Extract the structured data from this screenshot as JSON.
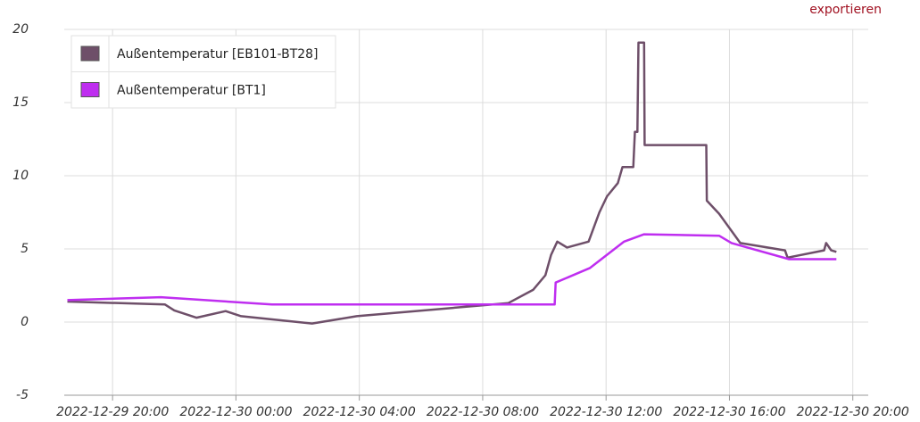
{
  "export_link": "exportieren",
  "chart_data": {
    "type": "line",
    "legend": "upper left",
    "grid": true,
    "ylim": [
      -5,
      20
    ],
    "yticks": [
      -5,
      0,
      5,
      10,
      15,
      20
    ],
    "xlim": [
      "2022-12-29 18:26",
      "2022-12-30 20:30"
    ],
    "xticks": [
      "2022-12-29 20:00",
      "2022-12-30 00:00",
      "2022-12-30 04:00",
      "2022-12-30 08:00",
      "2022-12-30 12:00",
      "2022-12-30 16:00",
      "2022-12-30 20:00"
    ],
    "series": [
      {
        "name": "Außentemperatur [EB101-BT28]",
        "color": "#6e4f69",
        "x": [
          "2022-12-29 18:32",
          "2022-12-29 21:42",
          "2022-12-29 22:00",
          "2022-12-29 22:43",
          "2022-12-29 23:40",
          "2022-12-30 00:10",
          "2022-12-30 02:28",
          "2022-12-30 03:55",
          "2022-12-30 08:50",
          "2022-12-30 09:38",
          "2022-12-30 10:02",
          "2022-12-30 10:13",
          "2022-12-30 10:25",
          "2022-12-30 10:44",
          "2022-12-30 11:26",
          "2022-12-30 11:47",
          "2022-12-30 12:02",
          "2022-12-30 12:23",
          "2022-12-30 12:32",
          "2022-12-30 12:53",
          "2022-12-30 12:56",
          "2022-12-30 13:01",
          "2022-12-30 13:03",
          "2022-12-30 13:14",
          "2022-12-30 13:15",
          "2022-12-30 15:15",
          "2022-12-30 15:16",
          "2022-12-30 15:40",
          "2022-12-30 16:21",
          "2022-12-30 17:48",
          "2022-12-30 17:53",
          "2022-12-30 19:04",
          "2022-12-30 19:08",
          "2022-12-30 19:18",
          "2022-12-30 19:28"
        ],
        "values": [
          1.4,
          1.2,
          0.8,
          0.3,
          0.75,
          0.4,
          -0.1,
          0.4,
          1.3,
          2.2,
          3.2,
          4.6,
          5.5,
          5.1,
          5.5,
          7.5,
          8.6,
          9.5,
          10.6,
          10.6,
          13.0,
          13.0,
          19.1,
          19.1,
          12.1,
          12.1,
          8.3,
          7.4,
          5.4,
          4.9,
          4.4,
          4.9,
          5.4,
          4.9,
          4.8
        ]
      },
      {
        "name": "Außentemperatur [BT1]",
        "color": "#bf2ef0",
        "x": [
          "2022-12-29 18:32",
          "2022-12-29 21:34",
          "2022-12-30 01:10",
          "2022-12-30 10:20",
          "2022-12-30 10:22",
          "2022-12-30 11:29",
          "2022-12-30 12:35",
          "2022-12-30 13:14",
          "2022-12-30 15:40",
          "2022-12-30 16:04",
          "2022-12-30 17:56",
          "2022-12-30 19:28"
        ],
        "values": [
          1.5,
          1.7,
          1.2,
          1.2,
          2.7,
          3.7,
          5.5,
          6.0,
          5.9,
          5.4,
          4.3,
          4.3
        ]
      }
    ]
  }
}
